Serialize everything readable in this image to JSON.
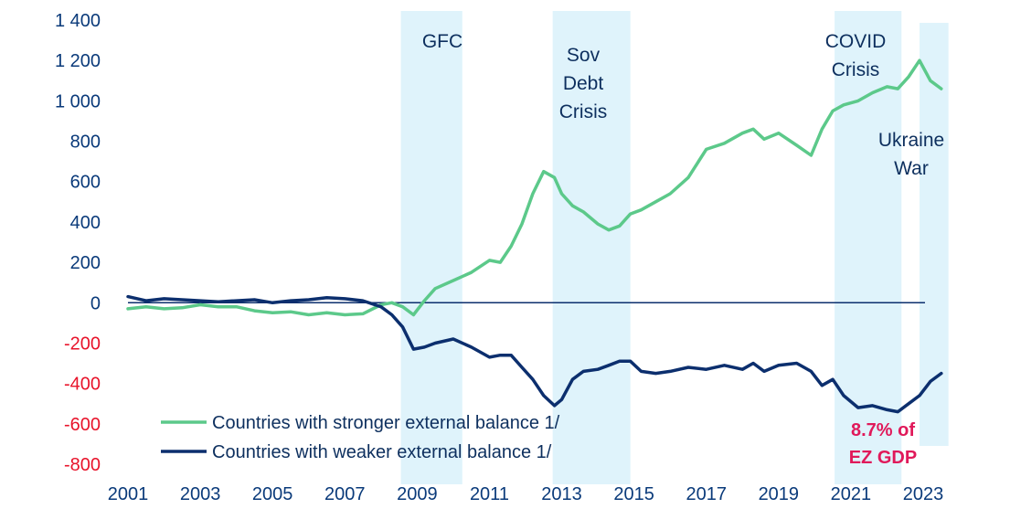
{
  "chart_data": {
    "type": "line",
    "title": "",
    "xlabel": "",
    "ylabel": "",
    "ylim": [
      -800,
      1400
    ],
    "xlim": [
      2001,
      2023.8
    ],
    "yticks": [
      1400,
      1200,
      1000,
      800,
      600,
      400,
      200,
      0,
      -200,
      -400,
      -600,
      -800
    ],
    "ytick_labels": [
      "1 400",
      "1 200",
      "1 000",
      "800",
      "600",
      "400",
      "200",
      "0",
      "-200",
      "-400",
      "-600",
      "-800"
    ],
    "xticks": [
      2001,
      2003,
      2005,
      2007,
      2009,
      2011,
      2013,
      2015,
      2017,
      2019,
      2021,
      2023
    ],
    "xtick_labels": [
      "2001",
      "2003",
      "2005",
      "2007",
      "2009",
      "2011",
      "2013",
      "2015",
      "2017",
      "2019",
      "2021",
      "2023"
    ],
    "grid": false,
    "legend_position": "bottom-left",
    "series": [
      {
        "name": "Countries with stronger external balance 1/",
        "color": "#5cc98a",
        "x": [
          2001,
          2001.5,
          2002,
          2002.5,
          2003,
          2003.5,
          2004,
          2004.5,
          2005,
          2005.5,
          2006,
          2006.5,
          2007,
          2007.5,
          2008,
          2008.3,
          2008.6,
          2008.9,
          2009.2,
          2009.5,
          2010,
          2010.5,
          2011,
          2011.3,
          2011.6,
          2011.9,
          2012.2,
          2012.5,
          2012.8,
          2013,
          2013.3,
          2013.6,
          2014,
          2014.3,
          2014.6,
          2014.9,
          2015.2,
          2015.6,
          2016,
          2016.5,
          2017,
          2017.5,
          2018,
          2018.3,
          2018.6,
          2019,
          2019.5,
          2019.9,
          2020.2,
          2020.5,
          2020.8,
          2021.2,
          2021.6,
          2022,
          2022.3,
          2022.6,
          2022.9,
          2023.2,
          2023.5
        ],
        "y": [
          -30,
          -20,
          -30,
          -25,
          -10,
          -20,
          -20,
          -40,
          -50,
          -45,
          -60,
          -50,
          -60,
          -55,
          -10,
          0,
          -20,
          -60,
          10,
          70,
          110,
          150,
          210,
          200,
          280,
          390,
          540,
          650,
          620,
          540,
          480,
          450,
          390,
          360,
          380,
          440,
          460,
          500,
          540,
          620,
          760,
          790,
          840,
          860,
          810,
          840,
          780,
          730,
          860,
          950,
          980,
          1000,
          1040,
          1070,
          1060,
          1120,
          1200,
          1100,
          1060
        ]
      },
      {
        "name": "Countries with weaker external balance 1/",
        "color": "#0c2f6e",
        "x": [
          2001,
          2001.5,
          2002,
          2002.5,
          2003,
          2003.5,
          2004,
          2004.5,
          2005,
          2005.5,
          2006,
          2006.5,
          2007,
          2007.5,
          2008,
          2008.3,
          2008.6,
          2008.9,
          2009.2,
          2009.5,
          2010,
          2010.5,
          2011,
          2011.3,
          2011.6,
          2011.9,
          2012.2,
          2012.5,
          2012.8,
          2013,
          2013.3,
          2013.6,
          2014,
          2014.3,
          2014.6,
          2014.9,
          2015.2,
          2015.6,
          2016,
          2016.5,
          2017,
          2017.5,
          2018,
          2018.3,
          2018.6,
          2019,
          2019.5,
          2019.9,
          2020.2,
          2020.5,
          2020.8,
          2021.2,
          2021.6,
          2022,
          2022.3,
          2022.6,
          2022.9,
          2023.2,
          2023.5
        ],
        "y": [
          30,
          10,
          20,
          15,
          10,
          5,
          10,
          15,
          0,
          10,
          15,
          25,
          20,
          10,
          -20,
          -60,
          -120,
          -230,
          -220,
          -200,
          -180,
          -220,
          -270,
          -260,
          -260,
          -320,
          -380,
          -460,
          -510,
          -480,
          -380,
          -340,
          -330,
          -310,
          -290,
          -290,
          -340,
          -350,
          -340,
          -320,
          -330,
          -310,
          -330,
          -300,
          -340,
          -310,
          -300,
          -340,
          -410,
          -380,
          -460,
          -520,
          -510,
          -530,
          -540,
          -500,
          -460,
          -390,
          -350
        ]
      }
    ],
    "shaded_periods": [
      {
        "label": "GFC",
        "start": 2008.55,
        "end": 2010.25
      },
      {
        "label": "Sov Debt Crisis",
        "start": 2012.75,
        "end": 2014.9
      },
      {
        "label": "COVID Crisis",
        "start": 2020.55,
        "end": 2022.4
      },
      {
        "label": "Ukraine War",
        "start": 2022.9,
        "end": 2023.7
      }
    ],
    "annotations": {
      "gfc": "GFC",
      "sov": [
        "Sov",
        "Debt",
        "Crisis"
      ],
      "covid": [
        "COVID",
        "Crisis"
      ],
      "ukraine": [
        "Ukraine",
        "War"
      ],
      "gdp_note": [
        "8.7% of",
        "EZ GDP"
      ]
    },
    "colors": {
      "shade": "#dff3fb",
      "zero_line": "#0c2f6e",
      "negative_tick": "#e8132a",
      "positive_tick": "#0a3a7a",
      "note": "#e0195a"
    }
  }
}
